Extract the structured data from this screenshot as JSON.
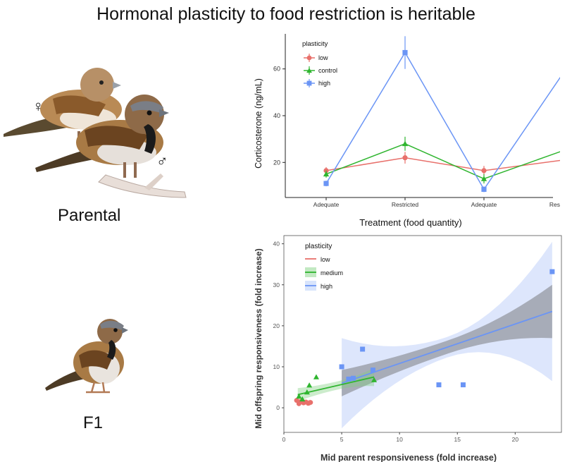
{
  "title": "Hormonal plasticity to food restriction is heritable",
  "labels": {
    "parental": "Parental",
    "f1": "F1"
  },
  "symbols": {
    "female": "♀",
    "male": "♂"
  },
  "colors": {
    "low": "#e8706b",
    "mid": "#2fb52f",
    "high": "#6b95f5"
  },
  "chart_data": [
    {
      "type": "line",
      "title": "",
      "xlabel": "Treatment (food quantity)",
      "ylabel": "Corticosterone (ng/mL)",
      "categories": [
        "Adequate",
        "Restricted",
        "Adequate",
        "Restricted"
      ],
      "yticks": [
        20,
        40,
        60
      ],
      "ylim": [
        5,
        75
      ],
      "legend": {
        "title": "plasticity",
        "position": "top-left"
      },
      "series": [
        {
          "name": "low",
          "marker": "circle",
          "values": [
            16.5,
            22,
            16.5,
            21
          ],
          "err": [
            1.5,
            2.5,
            2,
            2.5
          ]
        },
        {
          "name": "control",
          "marker": "triangle",
          "values": [
            15,
            28,
            13,
            25
          ],
          "err": [
            1.5,
            3,
            2,
            3
          ]
        },
        {
          "name": "high",
          "marker": "square",
          "values": [
            11,
            67,
            8.5,
            58
          ],
          "err": [
            1.2,
            7,
            1.2,
            5
          ]
        }
      ]
    },
    {
      "type": "scatter",
      "title": "",
      "xlabel": "Mid parent responsiveness (fold increase)",
      "ylabel": "Mid offspring responsiveness (fold increase)",
      "xticks": [
        0,
        5,
        10,
        15,
        20
      ],
      "yticks": [
        0,
        10,
        20,
        30,
        40
      ],
      "xlim": [
        0,
        24
      ],
      "ylim": [
        -6,
        42
      ],
      "legend": {
        "title": "plasticity",
        "position": "top-left"
      },
      "series": [
        {
          "name": "low",
          "marker": "circle",
          "points": [
            [
              1.1,
              1.8
            ],
            [
              1.3,
              1.0
            ],
            [
              1.5,
              1.6
            ],
            [
              1.7,
              1.2
            ],
            [
              1.9,
              1.4
            ],
            [
              2.1,
              1.1
            ],
            [
              2.3,
              1.3
            ]
          ],
          "fit": [
            [
              1.1,
              1.6
            ],
            [
              2.3,
              1.2
            ]
          ]
        },
        {
          "name": "medium",
          "marker": "triangle",
          "points": [
            [
              1.3,
              2.8
            ],
            [
              1.6,
              2.1
            ],
            [
              2.0,
              3.8
            ],
            [
              2.2,
              5.5
            ],
            [
              2.8,
              7.5
            ],
            [
              7.8,
              6.8
            ]
          ],
          "fit": [
            [
              1.2,
              3.2
            ],
            [
              7.8,
              7.5
            ]
          ]
        },
        {
          "name": "high",
          "marker": "square",
          "points": [
            [
              5.0,
              10.0
            ],
            [
              5.6,
              7.0
            ],
            [
              6.0,
              7.2
            ],
            [
              6.8,
              14.3
            ],
            [
              7.7,
              9.2
            ],
            [
              13.4,
              5.6
            ],
            [
              15.5,
              5.6
            ],
            [
              23.2,
              33.2
            ]
          ],
          "fit": [
            [
              5.0,
              6.0
            ],
            [
              23.2,
              23.5
            ]
          ]
        }
      ]
    }
  ]
}
